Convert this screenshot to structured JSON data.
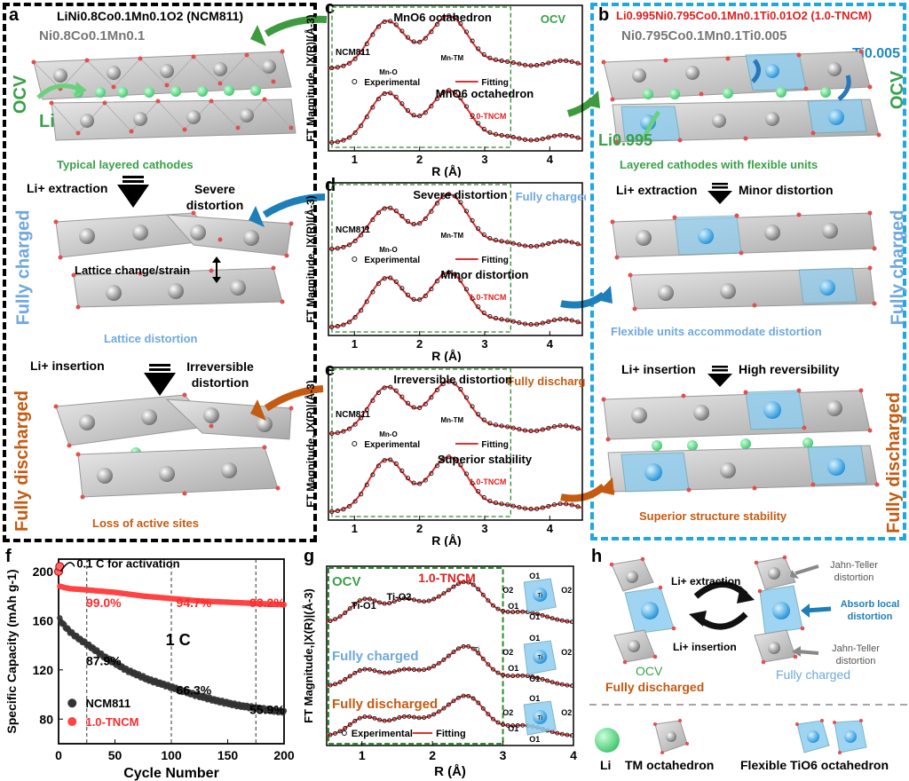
{
  "panel_labels": {
    "a": "a",
    "b": "b",
    "c": "c",
    "d": "d",
    "e": "e",
    "f": "f",
    "g": "g",
    "h": "h"
  },
  "panel_a": {
    "title": "LiNi0.8Co0.1Mn0.1O2 (NCM811)",
    "tm_label": "Ni0.8Co0.1Mn0.1",
    "li_label": "Li",
    "ocv": "OCV",
    "typical": "Typical layered cathodes",
    "li_extraction": "Li+ extraction",
    "severe": "Severe distortion",
    "fully_charged": "Fully charged",
    "lattice_change": "Lattice change/strain",
    "lattice_distortion": "Lattice distortion",
    "li_insertion": "Li+ insertion",
    "irreversible": "Irreversible distortion",
    "fully_discharged": "Fully discharged",
    "loss": "Loss of active sites"
  },
  "panel_b": {
    "title": "Li0.995Ni0.795Co0.1Mn0.1Ti0.01O2 (1.0-TNCM)",
    "tm_label": "Ni0.795Co0.1Mn0.1Ti0.005",
    "ti_label": "Ti0.005",
    "li_label": "Li0.995",
    "ocv": "OCV",
    "flexible_cathodes": "Layered cathodes with flexible units",
    "li_extraction": "Li+ extraction",
    "minor": "Minor distortion",
    "fully_charged": "Fully charged",
    "flexible_accommodate": "Flexible units accommodate distortion",
    "li_insertion": "Li+ insertion",
    "high_rev": "High reversibility",
    "fully_discharged": "Fully discharged",
    "superior": "Superior structure stability"
  },
  "panel_c": {
    "ylabel": "FT Magnitude, |X(R)|(Å-3)",
    "xlabel": "R (Å)",
    "state": "OCV",
    "top_title": "MnO6  octahedron",
    "sample_top": "NCM811",
    "peak1": "Mn-O",
    "peak2": "Mn-TM",
    "legend_exp": "Experimental",
    "legend_fit": "Fitting",
    "bottom_title": "MnO6 octahedron",
    "sample_bottom": "1.0-TNCM",
    "ticks": [
      "1",
      "2",
      "3",
      "4"
    ]
  },
  "panel_d": {
    "ylabel": "FT Magnitude, |X(R)|(Å-3)",
    "xlabel": "R (Å)",
    "state": "Fully charged",
    "top_title": "Severe distortion",
    "sample_top": "NCM811",
    "peak1": "Mn-O",
    "peak2": "Mn-TM",
    "legend_exp": "Experimental",
    "legend_fit": "Fitting",
    "bottom_title": "Minor distortion",
    "sample_bottom": "1.0-TNCM",
    "ticks": [
      "1",
      "2",
      "3",
      "4"
    ]
  },
  "panel_e": {
    "ylabel": "FT Magnitude, |X(R)|(Å-3)",
    "xlabel": "R (Å)",
    "state": "Fully discharged",
    "top_title": "Irreversible distortion",
    "sample_top": "NCM811",
    "peak1": "Mn-O",
    "peak2": "Mn-TM",
    "legend_exp": "Experimental",
    "legend_fit": "Fitting",
    "bottom_title": "Superior stability",
    "sample_bottom": "1.0-TNCM",
    "ticks": [
      "1",
      "2",
      "3",
      "4"
    ]
  },
  "panel_g": {
    "ylabel": "FT Magnitude,|X(R)|(Å-3)",
    "xlabel": "R (Å)",
    "ocv": "OCV",
    "sample": "1.0-TNCM",
    "peak1": "Ti-O1",
    "peak2": "Ti-O2",
    "fully_charged": "Fully charged",
    "fully_discharged": "Fully discharged",
    "legend_exp": "Experimental",
    "legend_fit": "Fitting",
    "ti": "Ti",
    "o1": "O1",
    "o2": "O2",
    "ticks": [
      "1",
      "2",
      "3",
      "4"
    ]
  },
  "panel_h": {
    "li_extraction": "Li+ extraction",
    "li_insertion": "Li+ insertion",
    "ocv": "OCV",
    "fully_discharged": "Fully discharged",
    "fully_charged": "Fully charged",
    "jt1": "Jahn-Teller distortion",
    "jt2": "Jahn-Teller distortion",
    "absorb": "Absorb local distortion",
    "legend_li": "Li",
    "legend_tm": "TM octahedron",
    "legend_flex": "Flexible TiO6 octahedron"
  },
  "chart_data": [
    {
      "type": "line",
      "panel": "f",
      "title": "",
      "xlabel": "Cycle Number",
      "ylabel": "Specific Capacity (mAh g-1)",
      "xlim": [
        0,
        200
      ],
      "ylim": [
        60,
        210
      ],
      "xticks": [
        0,
        50,
        100,
        150,
        200
      ],
      "yticks": [
        80,
        120,
        160,
        200
      ],
      "series": [
        {
          "name": "NCM811",
          "color": "#333333",
          "x": [
            1,
            5,
            10,
            20,
            25,
            40,
            60,
            80,
            100,
            120,
            140,
            160,
            175,
            190,
            200
          ],
          "y": [
            161,
            156,
            151,
            144,
            141,
            131,
            120,
            112,
            106,
            100,
            95,
            91,
            89,
            87,
            86
          ]
        },
        {
          "name": "1.0-TNCM",
          "color": "#ff4444",
          "x": [
            1,
            5,
            10,
            25,
            50,
            75,
            100,
            125,
            150,
            175,
            200
          ],
          "y": [
            188,
            187,
            186,
            185,
            183,
            180,
            178,
            176,
            175,
            174,
            173
          ]
        }
      ],
      "activation_points": [
        {
          "x": 0,
          "y": 200
        },
        {
          "x": 1,
          "y": 204
        }
      ],
      "annotations": {
        "activation": "0.1 C for activation",
        "rate": "1 C",
        "ret_red": [
          "99.0%",
          "94.7%",
          "93.2%"
        ],
        "ret_black": [
          "87.9%",
          "66.3%",
          "55.9%"
        ],
        "dashed_x": [
          25,
          100,
          175
        ]
      },
      "legend_placement": "bottom-left"
    }
  ],
  "colors": {
    "green": "#3aa04a",
    "blue": "#6fa8dc",
    "orange": "#c55a11",
    "red": "#e02020",
    "cyan_border": "#1ea7e1",
    "dashed_green": "#2e8b2e"
  }
}
